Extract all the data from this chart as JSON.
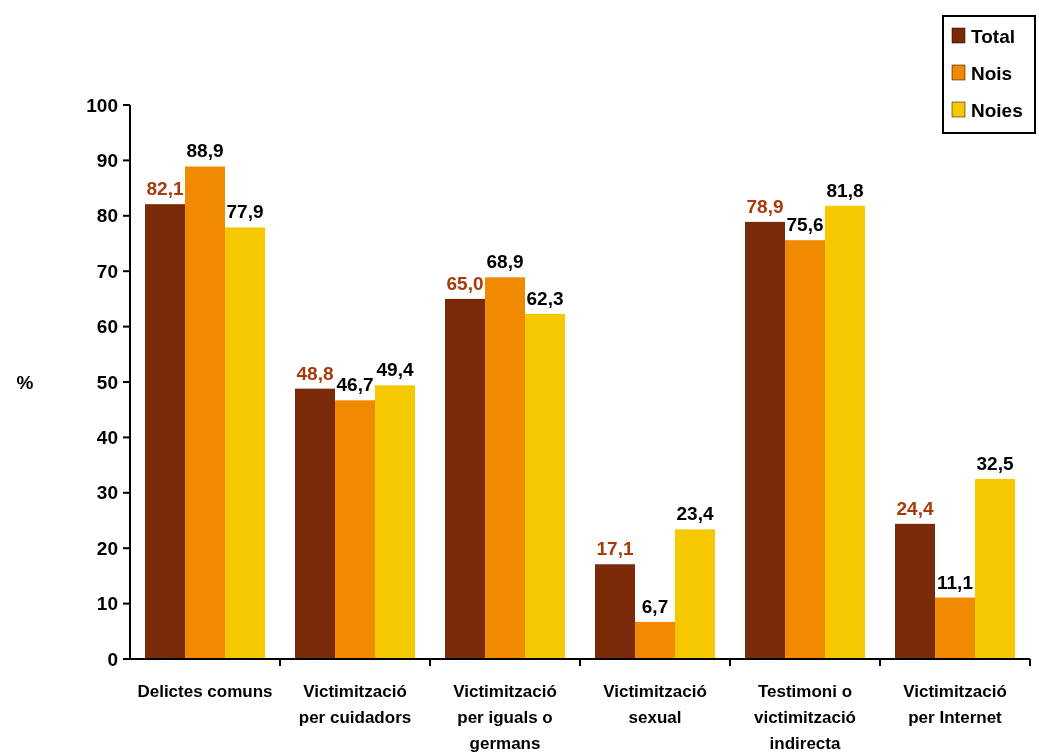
{
  "chart_data": {
    "type": "bar",
    "ylabel": "%",
    "categories": [
      "Delictes comuns",
      "Victimització per cuidadors",
      "Victimització per iguals o germans",
      "Victimització sexual",
      "Testimoni o victimització indirecta",
      "Victimització per Internet"
    ],
    "series": [
      {
        "name": "Total",
        "color": "#7a2a08",
        "values": [
          82.1,
          48.8,
          65.0,
          17.1,
          78.9,
          24.4
        ],
        "value_labels": [
          "82,1",
          "48,8",
          "65,0",
          "17,1",
          "78,9",
          "24,4"
        ]
      },
      {
        "name": "Nois",
        "color": "#f08a00",
        "values": [
          88.9,
          46.7,
          68.9,
          6.7,
          75.6,
          11.1
        ],
        "value_labels": [
          "88,9",
          "46,7",
          "68,9",
          "6,7",
          "75,6",
          "11,1"
        ]
      },
      {
        "name": "Noies",
        "color": "#f5c800",
        "values": [
          77.9,
          49.4,
          62.3,
          23.4,
          81.8,
          32.5
        ],
        "value_labels": [
          "77,9",
          "49,4",
          "62,3",
          "23,4",
          "81,8",
          "32,5"
        ]
      }
    ],
    "ylim": [
      0,
      100
    ],
    "yticks": [
      0,
      10,
      20,
      30,
      40,
      50,
      60,
      70,
      80,
      90,
      100
    ],
    "grid": false,
    "legend": "top right"
  }
}
